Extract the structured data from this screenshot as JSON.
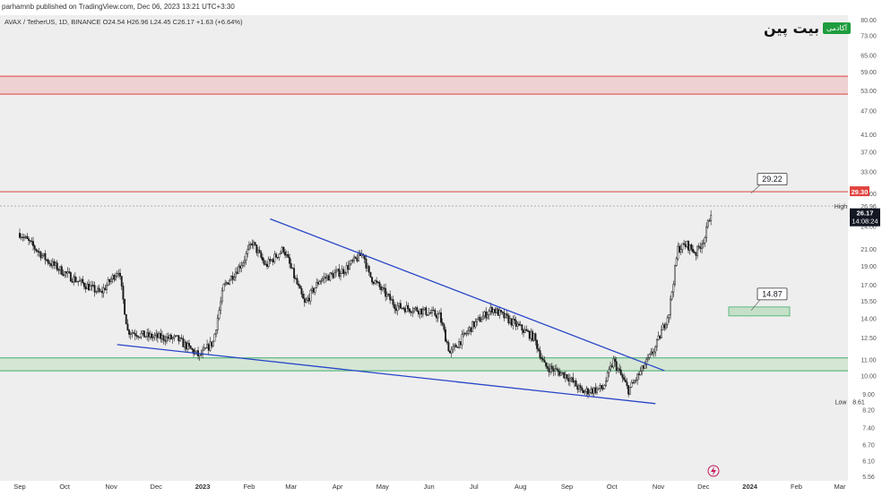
{
  "header": {
    "published": "parhamnb published on TradingView.com, Dec 06, 2023 13:21 UTC+3:30",
    "symbol": "AVAX / TetherUS, 1D, BINANCE",
    "ohlc": "O24.54 H26.96 L24.45 C26.17 +1.63 (+6.64%)"
  },
  "logo": {
    "text": "بیت پین",
    "badge": "آکادمی"
  },
  "colors": {
    "up": "#1b1b1b",
    "down": "#1b1b1b",
    "trendline": "#2745c7",
    "resistance": "#e0443f",
    "support": "#3fae6a",
    "price_label": "#131722",
    "red_label": "#e0443f"
  },
  "chart_data": {
    "type": "candlestick",
    "pair": "AVAX / TetherUS",
    "interval": "1D",
    "exchange": "BINANCE",
    "y_scale": "log",
    "ylim": [
      5.56,
      80.0
    ],
    "y_ticks": [
      "80.00",
      "73.00",
      "65.00",
      "59.00",
      "53.00",
      "47.00",
      "41.00",
      "37.00",
      "33.00",
      "29.00",
      "26.96",
      "24.00",
      "21.00",
      "19.00",
      "17.00",
      "15.50",
      "14.00",
      "12.50",
      "11.00",
      "10.00",
      "9.00",
      "8.20",
      "7.40",
      "6.70",
      "6.10",
      "5.56"
    ],
    "x_ticks": [
      "Sep",
      "Oct",
      "Nov",
      "Dec",
      "2023",
      "Feb",
      "Mar",
      "Apr",
      "May",
      "Jun",
      "Jul",
      "Aug",
      "Sep",
      "Oct",
      "Nov",
      "Dec",
      "2024",
      "Feb",
      "Mar"
    ],
    "x_ticks_bold": [
      "2023",
      "2024"
    ],
    "close_path": [
      {
        "t": "2022-09-01",
        "v": 23.0
      },
      {
        "t": "2022-09-20",
        "v": 19.5
      },
      {
        "t": "2022-10-05",
        "v": 17.8
      },
      {
        "t": "2022-10-25",
        "v": 16.2
      },
      {
        "t": "2022-11-06",
        "v": 18.6
      },
      {
        "t": "2022-11-12",
        "v": 13.0
      },
      {
        "t": "2022-11-25",
        "v": 12.6
      },
      {
        "t": "2022-12-15",
        "v": 12.4
      },
      {
        "t": "2022-12-30",
        "v": 11.2
      },
      {
        "t": "2023-01-08",
        "v": 12.2
      },
      {
        "t": "2023-01-15",
        "v": 16.8
      },
      {
        "t": "2023-01-28",
        "v": 19.5
      },
      {
        "t": "2023-02-03",
        "v": 21.8
      },
      {
        "t": "2023-02-12",
        "v": 19.0
      },
      {
        "t": "2023-02-24",
        "v": 21.0
      },
      {
        "t": "2023-03-10",
        "v": 15.2
      },
      {
        "t": "2023-03-20",
        "v": 17.5
      },
      {
        "t": "2023-04-05",
        "v": 18.5
      },
      {
        "t": "2023-04-18",
        "v": 20.5
      },
      {
        "t": "2023-04-22",
        "v": 18.0
      },
      {
        "t": "2023-05-10",
        "v": 15.0
      },
      {
        "t": "2023-05-25",
        "v": 14.7
      },
      {
        "t": "2023-06-08",
        "v": 14.2
      },
      {
        "t": "2023-06-15",
        "v": 11.4
      },
      {
        "t": "2023-06-30",
        "v": 13.4
      },
      {
        "t": "2023-07-13",
        "v": 14.8
      },
      {
        "t": "2023-07-25",
        "v": 13.8
      },
      {
        "t": "2023-08-10",
        "v": 12.5
      },
      {
        "t": "2023-08-17",
        "v": 10.6
      },
      {
        "t": "2023-09-01",
        "v": 10.0
      },
      {
        "t": "2023-09-11",
        "v": 9.1
      },
      {
        "t": "2023-09-25",
        "v": 9.3
      },
      {
        "t": "2023-10-02",
        "v": 10.9
      },
      {
        "t": "2023-10-12",
        "v": 9.2
      },
      {
        "t": "2023-10-20",
        "v": 10.2
      },
      {
        "t": "2023-10-30",
        "v": 11.8
      },
      {
        "t": "2023-11-08",
        "v": 14.5
      },
      {
        "t": "2023-11-14",
        "v": 21.0
      },
      {
        "t": "2023-11-20",
        "v": 21.5
      },
      {
        "t": "2023-11-26",
        "v": 20.5
      },
      {
        "t": "2023-12-02",
        "v": 22.5
      },
      {
        "t": "2023-12-06",
        "v": 26.17
      }
    ],
    "trendlines": [
      {
        "name": "upper",
        "from": {
          "t": "2023-02-15",
          "v": 25.0
        },
        "to": {
          "t": "2023-11-05",
          "v": 10.3
        }
      },
      {
        "name": "lower",
        "from": {
          "t": "2022-11-05",
          "v": 12.0
        },
        "to": {
          "t": "2023-10-30",
          "v": 8.5
        }
      }
    ],
    "zones": [
      {
        "name": "resistance-zone",
        "low": 51.8,
        "high": 57.5
      },
      {
        "name": "support-zone",
        "low": 10.3,
        "high": 11.1
      }
    ],
    "levels": [
      {
        "name": "resistance-line",
        "v": 29.3
      },
      {
        "name": "high-line",
        "v": 26.96
      }
    ],
    "targets": [
      {
        "label": "29.22",
        "v": 29.22
      },
      {
        "label": "14.87",
        "v": 14.87
      }
    ],
    "price_labels": {
      "red": "29.30",
      "high_tag": "High",
      "current": "26.17",
      "countdown": "14:08:24",
      "low_tag": "Low",
      "low_value": "8.61",
      "high_value": "26.96"
    }
  }
}
